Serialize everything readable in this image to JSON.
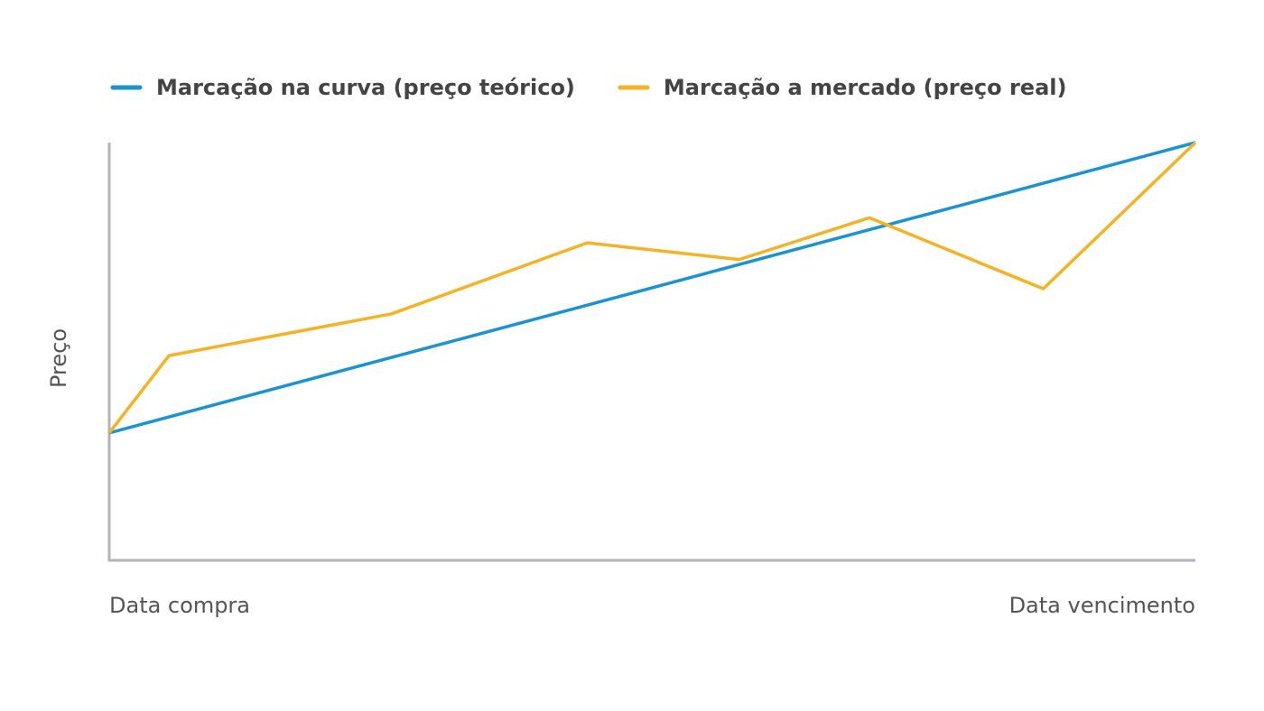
{
  "chart_data": {
    "type": "line",
    "xlabel": null,
    "ylabel": "Preço",
    "xlim": [
      0,
      100
    ],
    "ylim": [
      0,
      100
    ],
    "xticks": [
      {
        "value": 0,
        "label": "Data compra"
      },
      {
        "value": 100,
        "label": "Data vencimento"
      }
    ],
    "series": [
      {
        "name": "Marcação na curva (preço teórico)",
        "color": "#1a93d4",
        "x": [
          0,
          100
        ],
        "values": [
          30.5,
          100
        ]
      },
      {
        "name": "Marcação a mercado (preço real)",
        "color": "#f5b324",
        "x": [
          0,
          5.5,
          26,
          44,
          58,
          70,
          86,
          100
        ],
        "values": [
          30.5,
          49,
          59,
          76,
          72,
          82,
          65,
          100
        ]
      }
    ]
  }
}
